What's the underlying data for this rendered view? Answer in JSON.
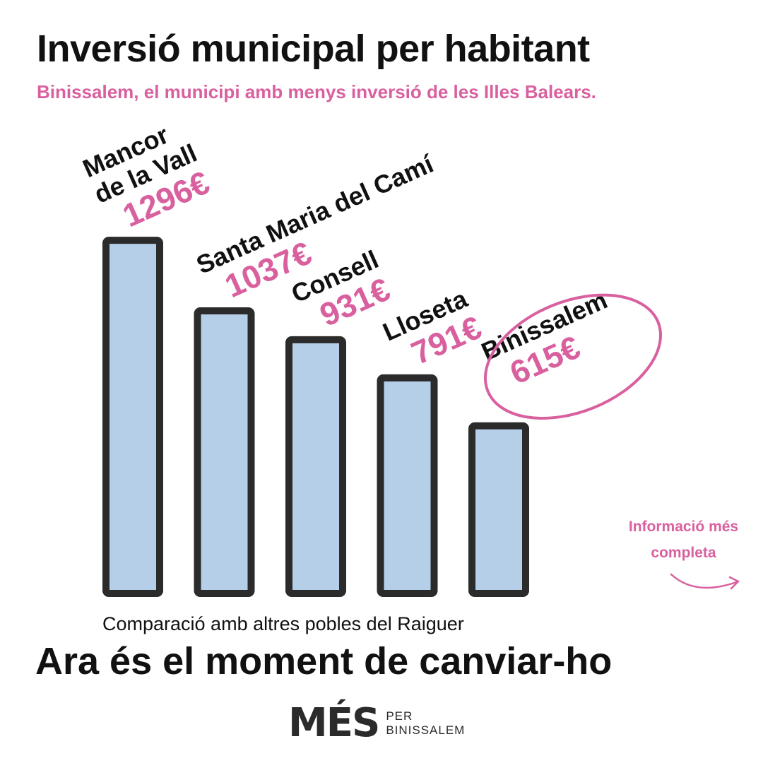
{
  "title": "Inversió municipal per habitant",
  "subtitle": "Binissalem, el municipi amb menys inversió de les Illes Balears.",
  "caption": "Comparació amb altres pobles del Raiguer",
  "call_to_action": "Ara és el moment de canviar-ho",
  "info_link": {
    "line1": "Informació més",
    "line2": "completa"
  },
  "logo": {
    "main": "MÉS",
    "per": "PER",
    "town": "BINISSALEM"
  },
  "colors": {
    "bar_fill": "#b5cfe8",
    "bar_stroke": "#2b2b2b",
    "accent": "#d9609f",
    "text": "#111111"
  },
  "chart_data": {
    "type": "bar",
    "title": "Inversió municipal per habitant",
    "subtitle": "Binissalem, el municipi amb menys inversió de les Illes Balears.",
    "categories": [
      "Mancor de la Vall",
      "Santa Maria del Camí",
      "Consell",
      "Lloseta",
      "Binissalem"
    ],
    "category_label_lines": [
      [
        "Mancor",
        "de la Vall"
      ],
      [
        "Santa Maria del Camí"
      ],
      [
        "Consell"
      ],
      [
        "Lloseta"
      ],
      [
        "Binissalem"
      ]
    ],
    "values": [
      1296,
      1037,
      931,
      791,
      615
    ],
    "value_labels": [
      "1296€",
      "1037€",
      "931€",
      "791€",
      "615€"
    ],
    "unit": "€",
    "highlighted": "Binissalem",
    "xlabel": "Comparació amb altres pobles del Raiguer",
    "ylabel": "",
    "ylim": [
      0,
      1400
    ],
    "grid": false,
    "legend": "none"
  }
}
